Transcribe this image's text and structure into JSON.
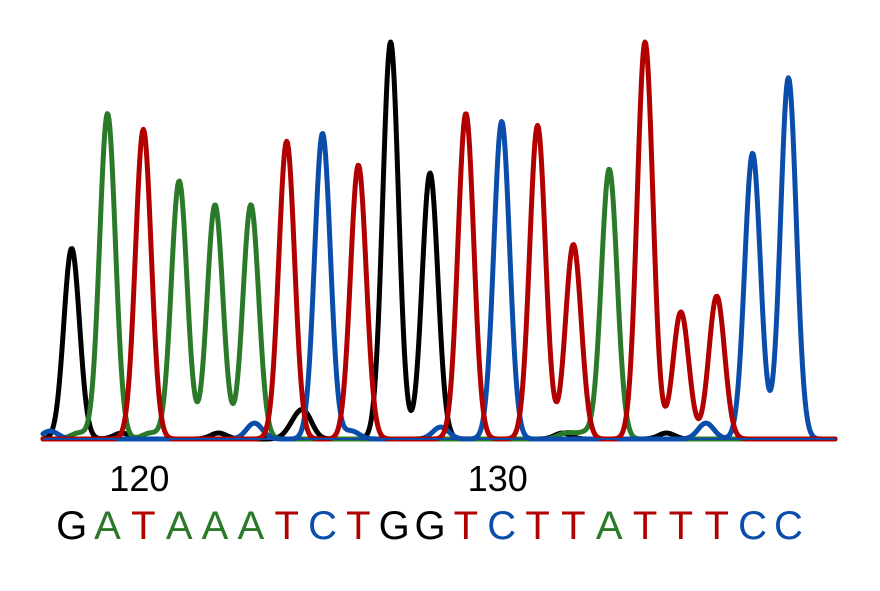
{
  "chart_data": {
    "type": "line",
    "title": "",
    "xlabel": "",
    "ylabel": "",
    "grid": false,
    "legend": "none",
    "xlim": [
      117.2,
      139.3
    ],
    "ylim": [
      0,
      100
    ],
    "colors": {
      "A": "#2a7a2a",
      "C": "#0a4dab",
      "G": "#000000",
      "T": "#b20000",
      "axis": "#0a4dab"
    },
    "x_ticks": [
      {
        "value": 120,
        "label": "120"
      },
      {
        "value": 130,
        "label": "130"
      }
    ],
    "sequence": [
      {
        "position": 118,
        "base": "G"
      },
      {
        "position": 119,
        "base": "A"
      },
      {
        "position": 120,
        "base": "T"
      },
      {
        "position": 121,
        "base": "A"
      },
      {
        "position": 122,
        "base": "A"
      },
      {
        "position": 123,
        "base": "A"
      },
      {
        "position": 124,
        "base": "T"
      },
      {
        "position": 125,
        "base": "C"
      },
      {
        "position": 126,
        "base": "T"
      },
      {
        "position": 127,
        "base": "G"
      },
      {
        "position": 128,
        "base": "G"
      },
      {
        "position": 129,
        "base": "T"
      },
      {
        "position": 130,
        "base": "C"
      },
      {
        "position": 131,
        "base": "T"
      },
      {
        "position": 132,
        "base": "T"
      },
      {
        "position": 133,
        "base": "A"
      },
      {
        "position": 134,
        "base": "T"
      },
      {
        "position": 135,
        "base": "T"
      },
      {
        "position": 136,
        "base": "T"
      },
      {
        "position": 137,
        "base": "C"
      },
      {
        "position": 138,
        "base": "C"
      }
    ],
    "series": [
      {
        "base": "G",
        "peaks": [
          [
            118,
            48
          ],
          [
            126.9,
            100
          ],
          [
            128,
            67
          ],
          [
            124.5,
            6
          ],
          [
            131.7,
            1.5
          ],
          [
            134.6,
            1.5
          ],
          [
            122.1,
            1.5
          ],
          [
            119.4,
            1.5
          ],
          [
            124.2,
            3
          ]
        ]
      },
      {
        "base": "A",
        "peaks": [
          [
            119,
            82
          ],
          [
            121,
            65
          ],
          [
            122,
            59
          ],
          [
            123,
            59
          ],
          [
            133,
            68
          ],
          [
            118.2,
            1.5
          ],
          [
            120.2,
            1.5
          ],
          [
            131.8,
            1.5
          ],
          [
            132.3,
            1.5
          ]
        ]
      },
      {
        "base": "T",
        "peaks": [
          [
            120,
            78
          ],
          [
            124,
            75
          ],
          [
            126,
            69
          ],
          [
            129,
            82
          ],
          [
            131,
            79
          ],
          [
            132,
            49
          ],
          [
            134,
            100
          ],
          [
            135,
            32
          ],
          [
            136,
            36
          ]
        ]
      },
      {
        "base": "C",
        "peaks": [
          [
            125,
            77
          ],
          [
            130,
            80
          ],
          [
            137,
            72
          ],
          [
            138,
            91
          ],
          [
            123.1,
            4
          ],
          [
            128.3,
            3
          ],
          [
            135.7,
            4
          ],
          [
            117.4,
            2
          ],
          [
            125.8,
            2
          ]
        ]
      }
    ]
  }
}
